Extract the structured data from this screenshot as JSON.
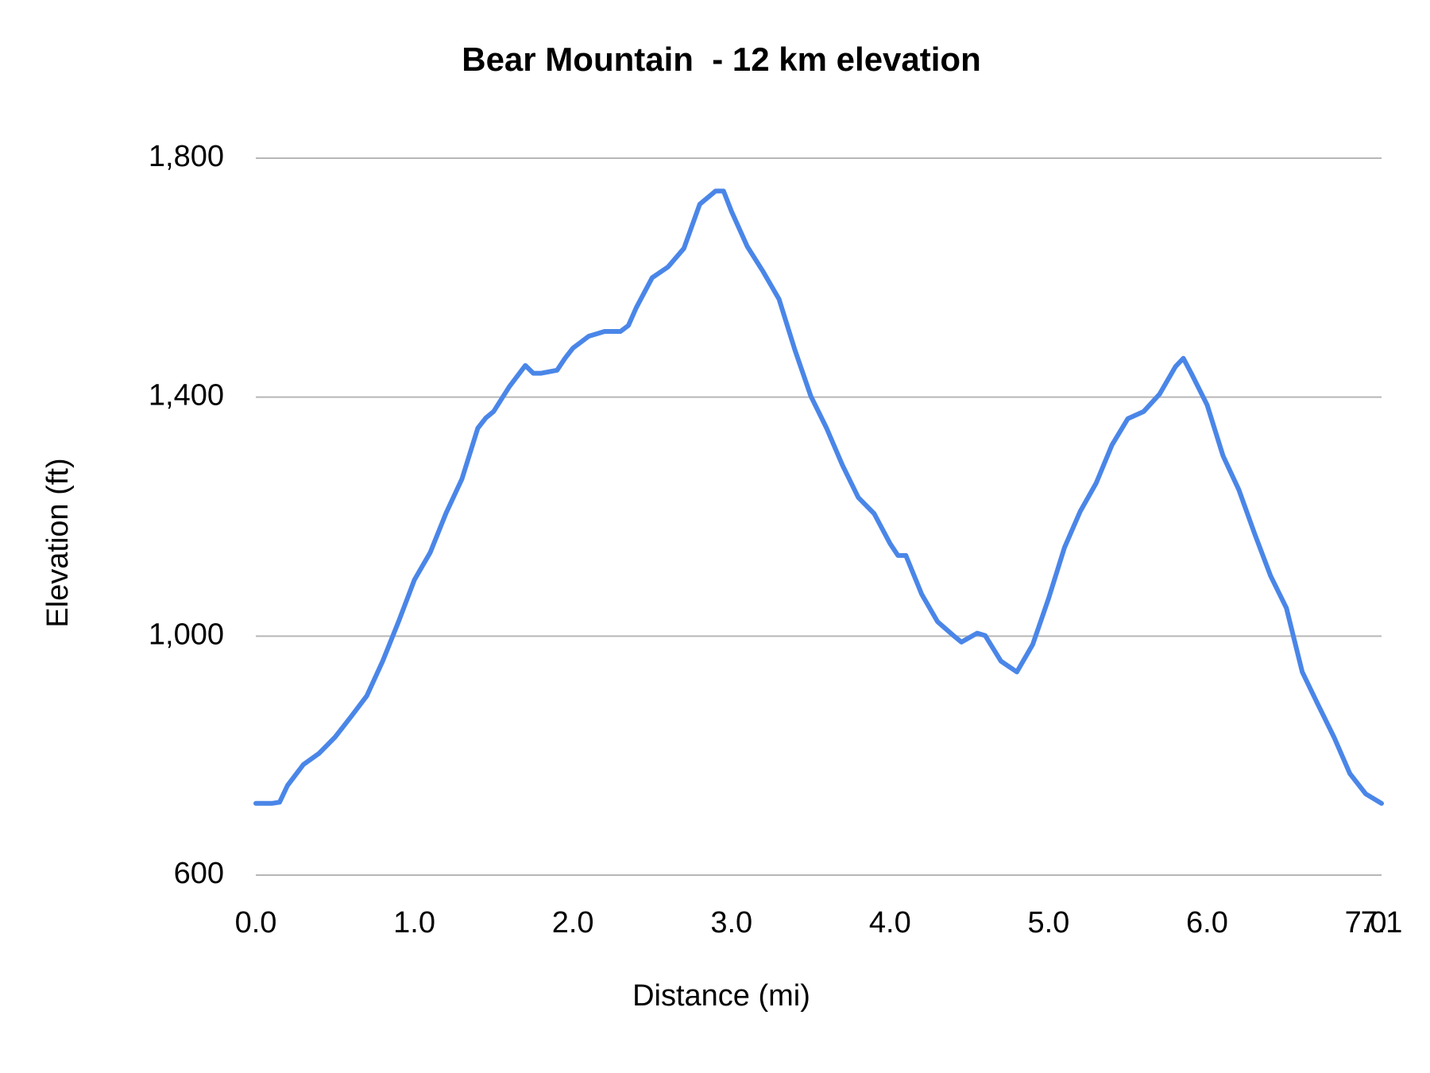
{
  "chart_data": {
    "type": "line",
    "title": "Bear Mountain  - 12 km elevation",
    "x_label": "Distance (mi)",
    "y_label": "Elevation (ft)",
    "xlim": [
      0,
      7.1
    ],
    "xticks": [
      {
        "value": 0,
        "label": "0.0"
      },
      {
        "value": 1,
        "label": "1.0"
      },
      {
        "value": 2,
        "label": "2.0"
      },
      {
        "value": 3,
        "label": "3.0"
      },
      {
        "value": 4,
        "label": "4.0"
      },
      {
        "value": 5,
        "label": "5.0"
      },
      {
        "value": 6,
        "label": "6.0"
      },
      {
        "value": 7,
        "label": "7.0"
      },
      {
        "value": 7.1,
        "label": "7.1"
      }
    ],
    "ylim": [
      600,
      1800
    ],
    "yticks": [
      600,
      {
        "value": 1000,
        "label": "1,000"
      },
      {
        "value": 1400,
        "label": "1,400"
      },
      {
        "value": 1800,
        "label": "1,800"
      }
    ],
    "grid": true,
    "x": [
      0,
      0.1,
      0.15,
      0.2,
      0.3,
      0.4,
      0.5,
      0.6,
      0.7,
      0.8,
      0.9,
      1.0,
      1.1,
      1.2,
      1.3,
      1.4,
      1.45,
      1.5,
      1.6,
      1.7,
      1.75,
      1.8,
      1.9,
      1.95,
      2.0,
      2.1,
      2.2,
      2.3,
      2.35,
      2.4,
      2.5,
      2.6,
      2.7,
      2.8,
      2.9,
      2.95,
      3.0,
      3.1,
      3.2,
      3.3,
      3.4,
      3.5,
      3.6,
      3.7,
      3.8,
      3.9,
      4.0,
      4.05,
      4.1,
      4.2,
      4.3,
      4.4,
      4.45,
      4.55,
      4.6,
      4.7,
      4.8,
      4.9,
      5.0,
      5.1,
      5.2,
      5.3,
      5.4,
      5.5,
      5.6,
      5.7,
      5.8,
      5.85,
      5.9,
      6.0,
      6.1,
      6.2,
      6.3,
      6.4,
      6.5,
      6.6,
      6.7,
      6.8,
      6.9,
      7.0,
      7.1
    ],
    "series": [
      {
        "name": "Elevation",
        "color": "#4a86e8",
        "values": [
          720,
          720,
          722,
          750,
          785,
          804,
          831,
          865,
          900,
          958,
          1024,
          1094,
          1140,
          1206,
          1263,
          1348,
          1365,
          1376,
          1418,
          1453,
          1440,
          1440,
          1445,
          1465,
          1482,
          1502,
          1510,
          1510,
          1520,
          1550,
          1600,
          1618,
          1649,
          1723,
          1745,
          1745,
          1711,
          1652,
          1610,
          1564,
          1479,
          1402,
          1348,
          1286,
          1232,
          1205,
          1155,
          1135,
          1135,
          1070,
          1024,
          1001,
          990,
          1005,
          1001,
          958,
          940,
          986,
          1063,
          1148,
          1209,
          1256,
          1320,
          1364,
          1376,
          1405,
          1451,
          1465,
          1440,
          1387,
          1302,
          1245,
          1171,
          1101,
          1047,
          940,
          885,
          831,
          770,
          736,
          720
        ]
      }
    ]
  }
}
